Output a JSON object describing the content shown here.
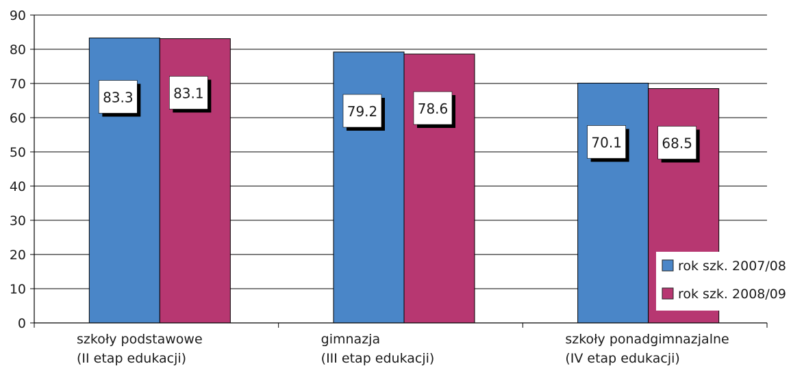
{
  "chart_data": {
    "type": "bar",
    "title": "",
    "xlabel": "",
    "ylabel": "",
    "ylim": [
      0,
      90
    ],
    "yticks": [
      "0",
      "10",
      "20",
      "30",
      "40",
      "50",
      "60",
      "70",
      "80",
      "90"
    ],
    "grid": true,
    "legend_position": "bottom-right",
    "categories": [
      {
        "line1": "szkoły podstawowe",
        "line2": "(II etap edukacji)"
      },
      {
        "line1": "gimnazja",
        "line2": "(III etap edukacji)"
      },
      {
        "line1": "szkoły ponadgimnazjalne",
        "line2": " (IV etap edukacji)"
      }
    ],
    "series": [
      {
        "name": "rok szk. 2007/08",
        "color": "#4a86c8",
        "values": [
          83.3,
          79.2,
          70.1
        ],
        "labels": [
          "83.3",
          "79.2",
          "70.1"
        ]
      },
      {
        "name": "rok szk. 2008/09",
        "color": "#b73771",
        "values": [
          83.1,
          78.6,
          68.5
        ],
        "labels": [
          "83.1",
          "78.6",
          "68.5"
        ]
      }
    ]
  }
}
